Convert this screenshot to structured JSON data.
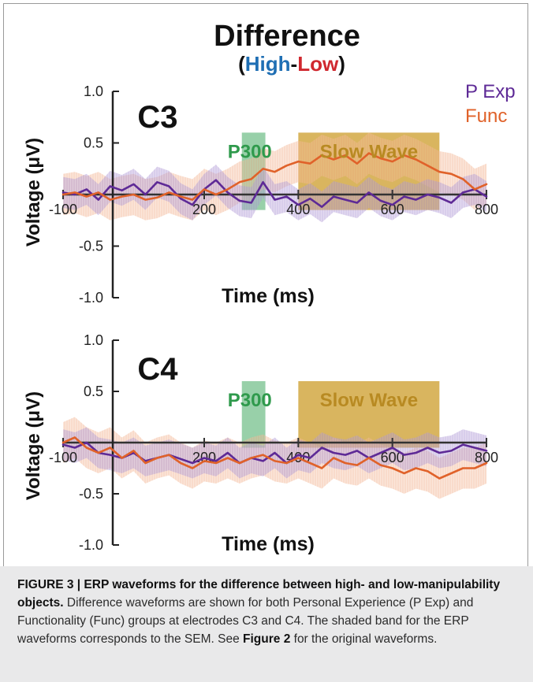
{
  "figure": {
    "title": "Difference",
    "subtitle_open": "(",
    "subtitle_high": "High",
    "subtitle_dash": "-",
    "subtitle_low": "Low",
    "subtitle_close": ")"
  },
  "colors": {
    "high": "#1f6fb4",
    "low": "#d0282f",
    "p_exp": "#5e2a96",
    "func": "#e0622a",
    "p300_band": "#53b070",
    "slow_wave_band": "#cc9c2a"
  },
  "legend": [
    {
      "name": "P Exp",
      "color": "#5e2a96"
    },
    {
      "name": "Func",
      "color": "#e0622a"
    }
  ],
  "chart_data": [
    {
      "type": "line",
      "panel": "C3",
      "xlabel": "Time (ms)",
      "ylabel": "Voltage (μV)",
      "xlim": [
        -100,
        800
      ],
      "ylim": [
        -1.0,
        1.0
      ],
      "x_ticks": [
        -100,
        200,
        400,
        600,
        800
      ],
      "x_tick_labels": [
        "-100",
        "200",
        "400",
        "600",
        "800"
      ],
      "y_ticks": [
        1.0,
        0.5,
        -0.5,
        -1.0
      ],
      "y_tick_labels": [
        "1.0",
        "0.5",
        "-0.5",
        "-1.0"
      ],
      "legend_position": "top-right",
      "shaded_windows": [
        {
          "label": "P300",
          "x_start": 280,
          "x_end": 330,
          "y_bottom": -0.15,
          "y_top": 0.6
        },
        {
          "label": "Slow Wave",
          "x_start": 400,
          "x_end": 700,
          "y_bottom": -0.15,
          "y_top": 0.6
        }
      ],
      "x": [
        -100,
        -75,
        -50,
        -25,
        0,
        25,
        50,
        75,
        100,
        125,
        150,
        175,
        200,
        225,
        250,
        275,
        300,
        325,
        350,
        375,
        400,
        425,
        450,
        475,
        500,
        525,
        550,
        575,
        600,
        625,
        650,
        675,
        700,
        725,
        750,
        775,
        800
      ],
      "series": [
        {
          "name": "P Exp",
          "values": [
            0.02,
            0.0,
            0.05,
            -0.05,
            0.08,
            0.04,
            0.1,
            0.0,
            0.12,
            0.08,
            -0.04,
            -0.1,
            0.05,
            0.14,
            0.02,
            -0.06,
            -0.08,
            0.12,
            -0.05,
            -0.02,
            -0.1,
            -0.04,
            -0.12,
            -0.02,
            -0.05,
            -0.08,
            0.02,
            -0.06,
            -0.1,
            -0.02,
            -0.05,
            0.0,
            -0.03,
            -0.08,
            0.02,
            0.05,
            -0.02
          ],
          "sem": 0.15
        },
        {
          "name": "Func",
          "values": [
            0.0,
            0.02,
            -0.02,
            0.02,
            -0.05,
            -0.02,
            0.0,
            -0.05,
            -0.03,
            0.02,
            -0.02,
            -0.05,
            0.05,
            0.0,
            0.05,
            0.12,
            0.15,
            0.25,
            0.22,
            0.28,
            0.32,
            0.3,
            0.38,
            0.34,
            0.38,
            0.3,
            0.4,
            0.35,
            0.32,
            0.38,
            0.34,
            0.28,
            0.22,
            0.2,
            0.15,
            0.05,
            0.1
          ],
          "sem": 0.2
        }
      ]
    },
    {
      "type": "line",
      "panel": "C4",
      "xlabel": "Time (ms)",
      "ylabel": "Voltage (μV)",
      "xlim": [
        -100,
        800
      ],
      "ylim": [
        -1.0,
        1.0
      ],
      "x_ticks": [
        -100,
        200,
        400,
        600,
        800
      ],
      "x_tick_labels": [
        "-100",
        "200",
        "400",
        "600",
        "800"
      ],
      "y_ticks": [
        1.0,
        0.5,
        -0.5,
        -1.0
      ],
      "y_tick_labels": [
        "1.0",
        "0.5",
        "-0.5",
        "-1.0"
      ],
      "shaded_windows": [
        {
          "label": "P300",
          "x_start": 280,
          "x_end": 330,
          "y_bottom": -0.05,
          "y_top": 0.6
        },
        {
          "label": "Slow Wave",
          "x_start": 400,
          "x_end": 700,
          "y_bottom": -0.05,
          "y_top": 0.6
        }
      ],
      "x": [
        -100,
        -75,
        -50,
        -25,
        0,
        25,
        50,
        75,
        100,
        125,
        150,
        175,
        200,
        225,
        250,
        275,
        300,
        325,
        350,
        375,
        400,
        425,
        450,
        475,
        500,
        525,
        550,
        575,
        600,
        625,
        650,
        675,
        700,
        725,
        750,
        775,
        800
      ],
      "series": [
        {
          "name": "P Exp",
          "values": [
            -0.02,
            -0.05,
            0.0,
            -0.1,
            -0.12,
            -0.15,
            -0.1,
            -0.18,
            -0.15,
            -0.12,
            -0.16,
            -0.2,
            -0.15,
            -0.18,
            -0.1,
            -0.2,
            -0.15,
            -0.18,
            -0.1,
            -0.2,
            -0.12,
            -0.15,
            -0.05,
            -0.1,
            -0.12,
            -0.08,
            -0.15,
            -0.1,
            -0.05,
            -0.12,
            -0.1,
            -0.05,
            -0.1,
            -0.08,
            -0.02,
            -0.05,
            -0.08
          ],
          "sem": 0.15
        },
        {
          "name": "Func",
          "values": [
            0.0,
            0.05,
            -0.05,
            -0.1,
            -0.05,
            -0.15,
            -0.08,
            -0.2,
            -0.15,
            -0.12,
            -0.2,
            -0.25,
            -0.18,
            -0.2,
            -0.15,
            -0.2,
            -0.15,
            -0.12,
            -0.18,
            -0.2,
            -0.15,
            -0.2,
            -0.25,
            -0.15,
            -0.2,
            -0.22,
            -0.15,
            -0.22,
            -0.25,
            -0.3,
            -0.25,
            -0.28,
            -0.35,
            -0.3,
            -0.25,
            -0.25,
            -0.2
          ],
          "sem": 0.2
        }
      ]
    }
  ],
  "caption": {
    "label": "FIGURE 3 | ERP waveforms for the difference between high- and low-manipulability objects.",
    "text_1": " Difference waveforms are shown for both Personal Experience (P Exp) and Functionality (Func) groups at electrodes C3 and C4. The shaded band for the ERP waveforms corresponds to the SEM. See ",
    "figure_ref": "Figure 2",
    "text_2": " for the original waveforms."
  }
}
